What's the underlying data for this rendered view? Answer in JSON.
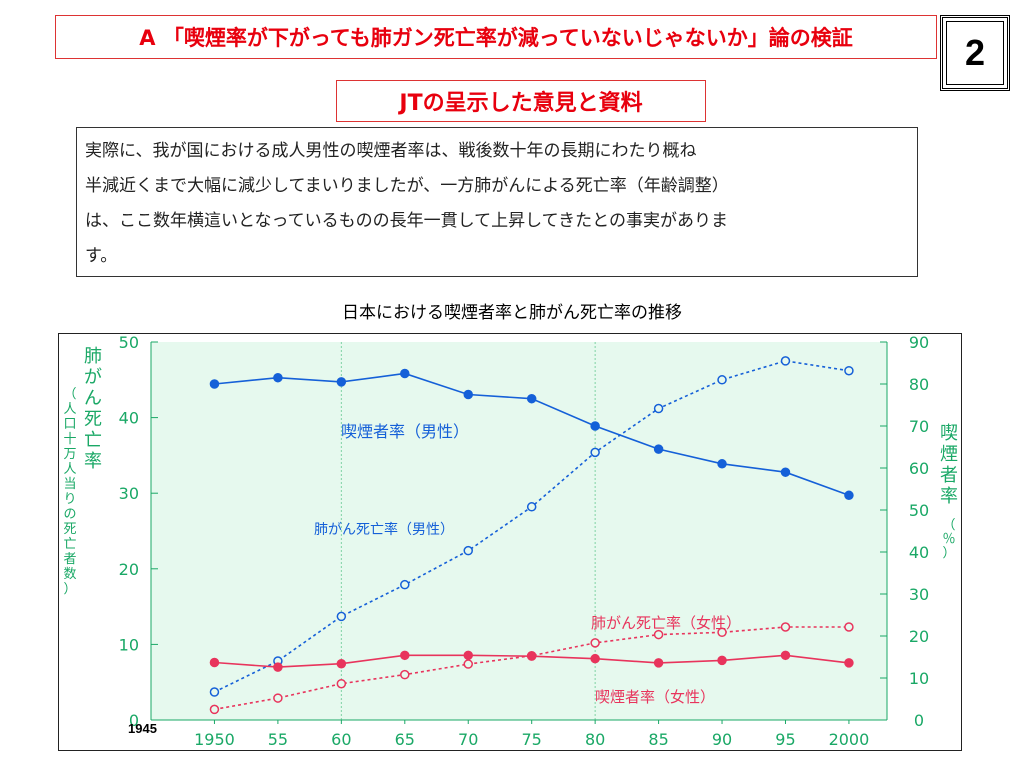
{
  "slide": {
    "title": "A 「喫煙率が下がっても肺ガン死亡率が減っていないじゃないか」論の検証",
    "page_number": "2",
    "subtitle": "JTの呈示した意見と資料",
    "quote_lines": [
      "実際に、我が国における成人男性の喫煙者率は、戦後数十年の長期にわたり概ね",
      "半減近くまで大幅に減少してまいりましたが、一方肺がんによる死亡率（年齢調整）",
      "は、ここ数年横這いとなっているものの長年一貫して上昇してきたとの事実がありま",
      "す。"
    ]
  },
  "colors": {
    "red_title": "#e8000e",
    "chart_bg": "#e6f9ee",
    "axis_green": "#1aa866",
    "blue": "#1560d8",
    "pink": "#e8345c",
    "grid": "#7fd3a4"
  },
  "chart_data": {
    "type": "line",
    "title": "日本における喫煙者率と肺がん死亡率の推移",
    "x": [
      1950,
      1955,
      1960,
      1965,
      1970,
      1975,
      1980,
      1985,
      1990,
      1995,
      2000
    ],
    "x_tick_labels": [
      "1950",
      "55",
      "60",
      "65",
      "70",
      "75",
      "80",
      "85",
      "90",
      "95",
      "2000"
    ],
    "x_start_label": "1945",
    "xlim": [
      1945,
      2003
    ],
    "vertical_grid_years": [
      1960,
      1980
    ],
    "left_axis": {
      "label": "肺がん死亡率（人口十万人当りの死亡者数）",
      "label_main": "肺がん死亡率",
      "label_sub": "（人口十万人当りの死亡者数）",
      "ylim": [
        0,
        50
      ],
      "ticks": [
        0,
        10,
        20,
        30,
        40,
        50
      ]
    },
    "right_axis": {
      "label": "喫煙者率（％）",
      "label_main": "喫煙者率",
      "label_sub": "（％）",
      "ylim": [
        0,
        90
      ],
      "ticks": [
        0,
        10,
        20,
        30,
        40,
        50,
        60,
        70,
        80,
        90
      ]
    },
    "series": [
      {
        "name": "喫煙者率（男性）",
        "axis": "right",
        "style": "solid",
        "color": "#1560d8",
        "values": [
          80,
          81.5,
          80.5,
          82.5,
          77.5,
          76.5,
          70,
          64.5,
          61,
          59,
          53.5
        ]
      },
      {
        "name": "肺がん死亡率（男性）",
        "axis": "left",
        "style": "dotted",
        "color": "#1560d8",
        "values": [
          3.7,
          7.8,
          13.7,
          17.9,
          22.4,
          28.2,
          35.4,
          41.2,
          45.0,
          47.5,
          46.2
        ]
      },
      {
        "name": "肺がん死亡率（女性）",
        "axis": "left",
        "style": "dotted",
        "color": "#e8345c",
        "values": [
          1.4,
          2.9,
          4.8,
          6.0,
          7.4,
          8.5,
          10.2,
          11.3,
          11.6,
          12.3,
          12.3
        ]
      },
      {
        "name": "喫煙者率（女性）",
        "axis": "right",
        "style": "solid",
        "color": "#e8345c",
        "values": [
          13.7,
          12.6,
          13.4,
          15.4,
          15.4,
          15.2,
          14.6,
          13.6,
          14.2,
          15.4,
          13.6
        ]
      }
    ]
  }
}
